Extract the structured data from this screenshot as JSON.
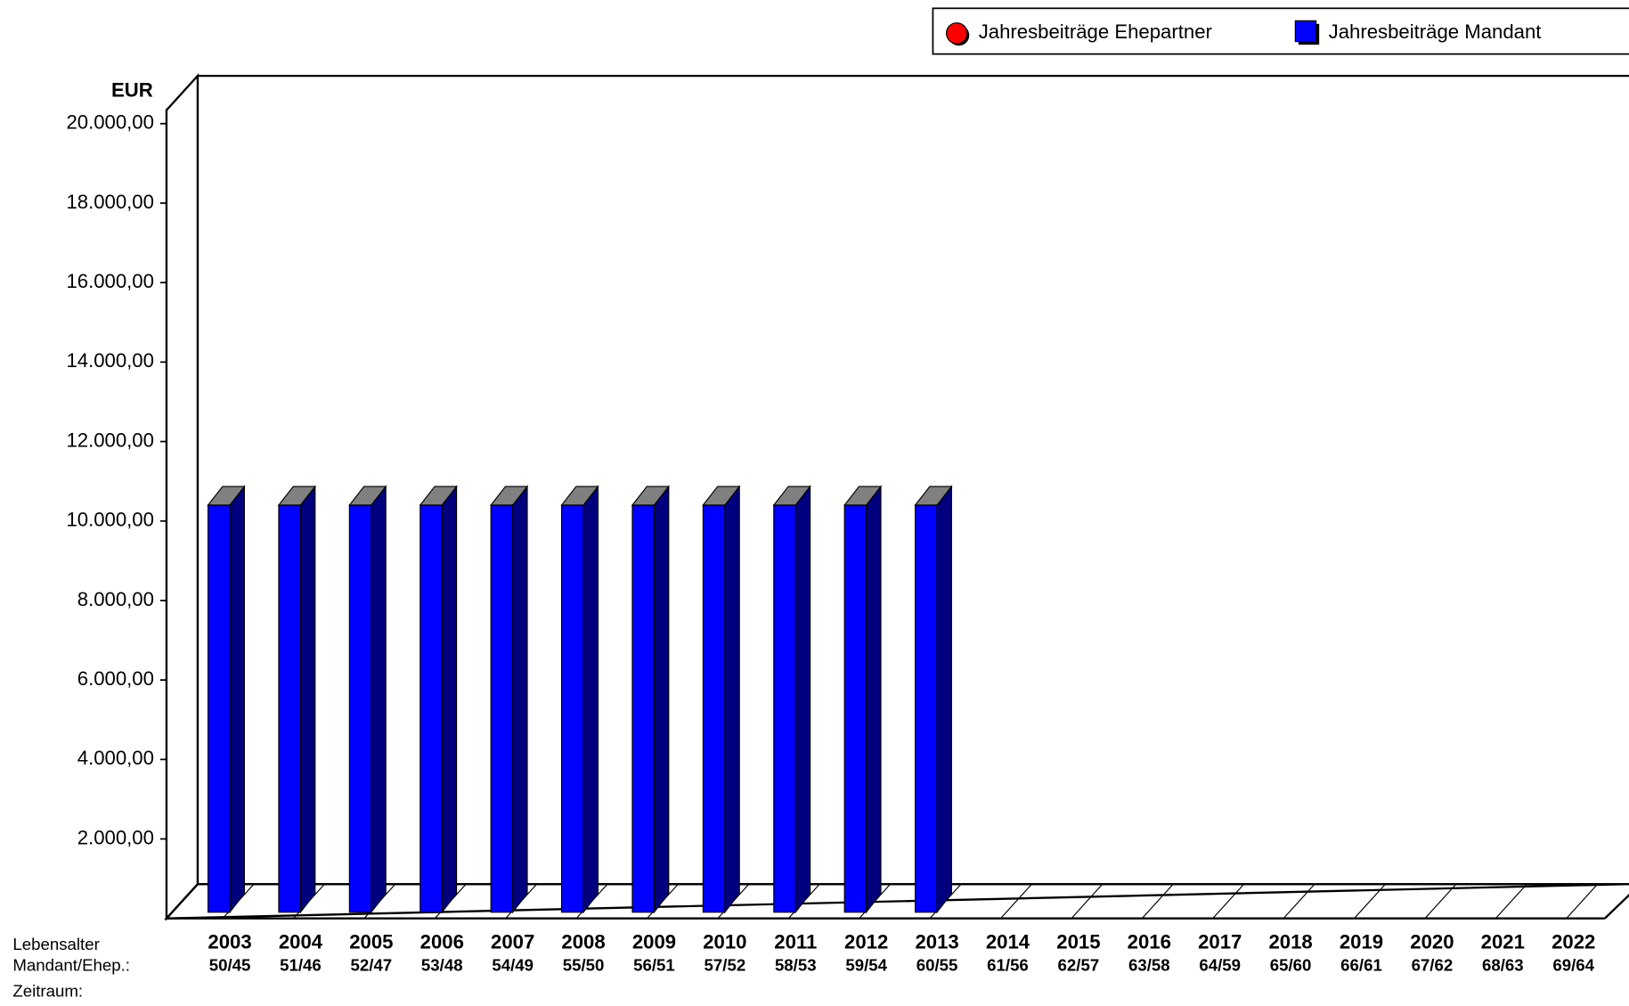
{
  "chart_data": {
    "type": "bar3d",
    "y_label": "EUR",
    "row_labels": [
      "Lebensalter",
      "Mandant/Ehep.:",
      "Zeitraum:"
    ],
    "categories": [
      "2003",
      "2004",
      "2005",
      "2006",
      "2007",
      "2008",
      "2009",
      "2010",
      "2011",
      "2012",
      "2013",
      "2014",
      "2015",
      "2016",
      "2017",
      "2018",
      "2019",
      "2020",
      "2021",
      "2022"
    ],
    "age_labels": [
      "50/45",
      "51/46",
      "52/47",
      "53/48",
      "54/49",
      "55/50",
      "56/51",
      "57/52",
      "58/53",
      "59/54",
      "60/55",
      "61/56",
      "62/57",
      "63/58",
      "64/59",
      "65/60",
      "66/61",
      "67/62",
      "68/63",
      "69/64"
    ],
    "series": [
      {
        "name": "Jahresbeiträge Ehepartner",
        "color": "#ff0000",
        "values": [
          null,
          null,
          null,
          null,
          null,
          null,
          null,
          null,
          null,
          null,
          null,
          null,
          null,
          null,
          null,
          null,
          null,
          null,
          null,
          null
        ]
      },
      {
        "name": "Jahresbeiträge Mandant",
        "color": "#0000ff",
        "side_color": "#00007f",
        "top_color": "#808080",
        "values": [
          10400,
          10400,
          10400,
          10400,
          10400,
          10400,
          10400,
          10400,
          10400,
          10400,
          10400,
          null,
          null,
          null,
          null,
          null,
          null,
          null,
          null,
          null
        ]
      }
    ],
    "ylim": [
      0,
      20000
    ],
    "yticks": [
      {
        "value": 2000,
        "label": "2.000,00"
      },
      {
        "value": 4000,
        "label": "4.000,00"
      },
      {
        "value": 6000,
        "label": "6.000,00"
      },
      {
        "value": 8000,
        "label": "8.000,00"
      },
      {
        "value": 10000,
        "label": "10.000,00"
      },
      {
        "value": 12000,
        "label": "12.000,00"
      },
      {
        "value": 14000,
        "label": "14.000,00"
      },
      {
        "value": 16000,
        "label": "16.000,00"
      },
      {
        "value": 18000,
        "label": "18.000,00"
      },
      {
        "value": 20000,
        "label": "20.000,00"
      }
    ],
    "legend": "top-right"
  }
}
